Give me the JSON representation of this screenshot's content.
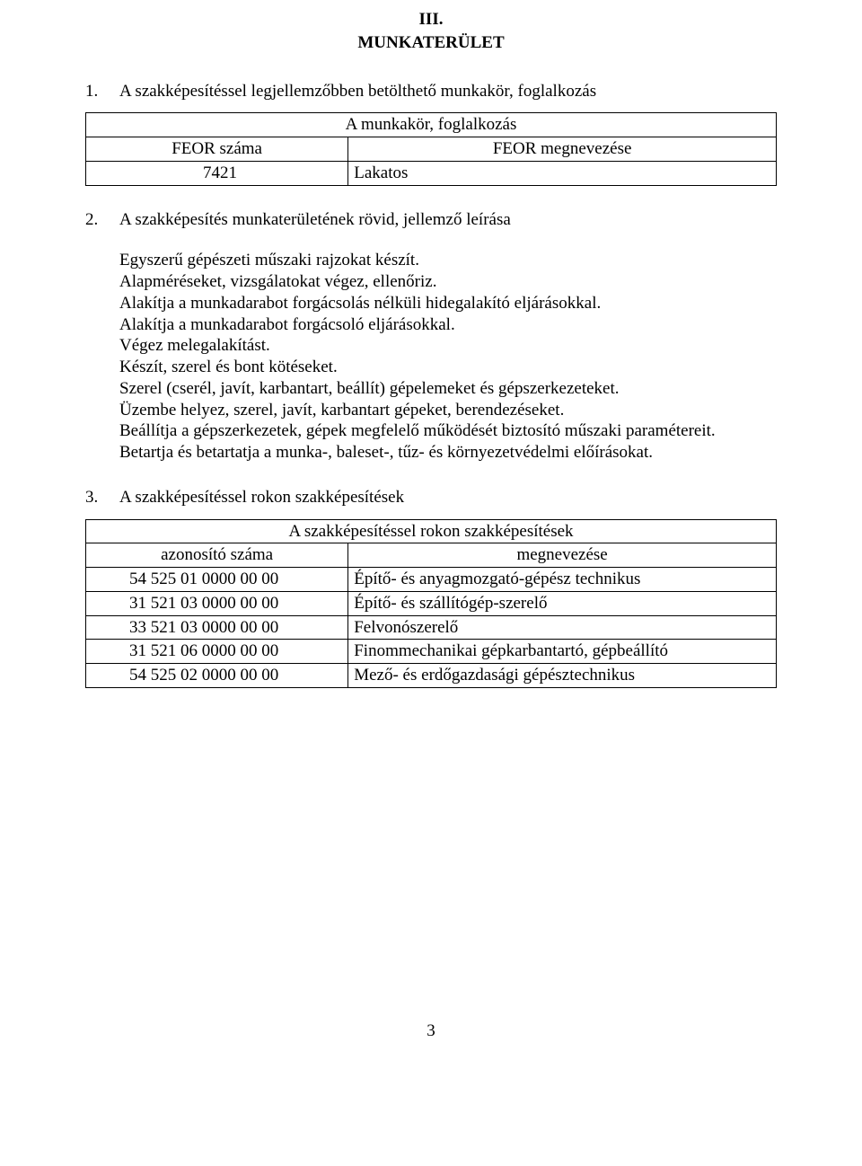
{
  "header": {
    "roman": "III.",
    "title": "MUNKATERÜLET"
  },
  "item1": {
    "num": "1.",
    "text": "A szakképesítéssel legjellemzőbben betölthető munkakör, foglalkozás"
  },
  "table1": {
    "header": "A munkakör, foglalkozás",
    "col1": "FEOR száma",
    "col2": "FEOR megnevezése",
    "r1c1": "7421",
    "r1c2": "Lakatos"
  },
  "item2": {
    "num": "2.",
    "text": "A szakképesítés munkaterületének rövid, jellemző leírása"
  },
  "para": {
    "l1": "Egyszerű gépészeti műszaki rajzokat készít.",
    "l2": "Alapméréseket, vizsgálatokat végez, ellenőriz.",
    "l3": "Alakítja a munkadarabot forgácsolás nélküli hidegalakító eljárásokkal.",
    "l4": "Alakítja a munkadarabot forgácsoló eljárásokkal.",
    "l5": "Végez melegalakítást.",
    "l6": "Készít, szerel és bont kötéseket.",
    "l7": "Szerel (cserél, javít, karbantart, beállít) gépelemeket és gépszerkezeteket.",
    "l8": "Üzembe helyez, szerel, javít, karbantart gépeket, berendezéseket.",
    "l9": "Beállítja a gépszerkezetek, gépek megfelelő működését biztosító műszaki paramétereit.",
    "l10": "Betartja és betartatja a munka-, baleset-, tűz- és környezetvédelmi előírásokat."
  },
  "item3": {
    "num": "3.",
    "text": "A szakképesítéssel rokon szakképesítések"
  },
  "table2": {
    "header": "A szakképesítéssel rokon szakképesítések",
    "col1": "azonosító száma",
    "col2": "megnevezése",
    "rows": [
      {
        "c1": "54 525 01 0000 00 00",
        "c2": "Építő- és anyagmozgató-gépész technikus"
      },
      {
        "c1": "31 521 03 0000 00 00",
        "c2": "Építő- és szállítógép-szerelő"
      },
      {
        "c1": "33 521 03 0000 00 00",
        "c2": "Felvonószerelő"
      },
      {
        "c1": "31 521 06 0000 00 00",
        "c2": "Finommechanikai gépkarbantartó, gépbeállító"
      },
      {
        "c1": "54 525 02 0000 00 00",
        "c2": "Mező- és erdőgazdasági gépésztechnikus"
      }
    ]
  },
  "pageNumber": "3"
}
